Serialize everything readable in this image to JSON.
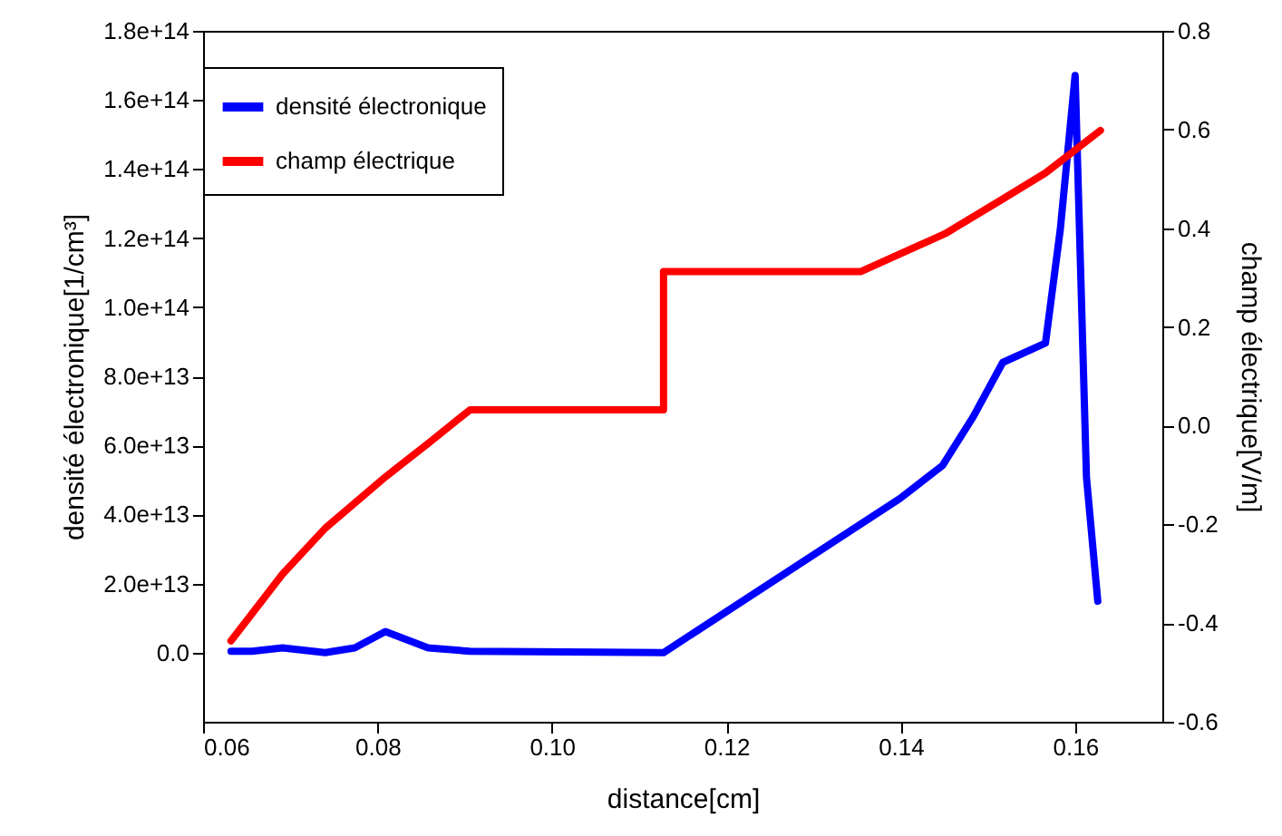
{
  "chart_data": {
    "type": "line",
    "xlabel": "distance[cm]",
    "ylabel": "densité électronique[1/cm³]",
    "y2label": "champ électrique[V/m]",
    "xlim": [
      0.06,
      0.17
    ],
    "xticks": [
      0.06,
      0.08,
      {
        "value": 0.1,
        "label": "0.10"
      },
      0.12,
      0.14,
      0.16
    ],
    "ylim": [
      -20000000000000.0,
      180000000000000.0
    ],
    "yticks": [
      {
        "value": 0,
        "label": "0.0"
      },
      {
        "value": 20000000000000.0,
        "label": "2.0e+13"
      },
      {
        "value": 40000000000000.0,
        "label": "4.0e+13"
      },
      {
        "value": 60000000000000.0,
        "label": "6.0e+13"
      },
      {
        "value": 80000000000000.0,
        "label": "8.0e+13"
      },
      {
        "value": 100000000000000.0,
        "label": "1.0e+14"
      },
      {
        "value": 120000000000000.0,
        "label": "1.2e+14"
      },
      {
        "value": 140000000000000.0,
        "label": "1.4e+14"
      },
      {
        "value": 160000000000000.0,
        "label": "1.6e+14"
      },
      {
        "value": 180000000000000.0,
        "label": "1.8e+14"
      }
    ],
    "y2lim": [
      -0.6,
      0.8
    ],
    "y2ticks": [
      -0.6,
      -0.4,
      -0.2,
      {
        "value": 0,
        "label": "0.0"
      },
      0.2,
      0.4,
      0.6,
      0.8
    ],
    "legend": "top left",
    "line_style": "solid",
    "series": [
      {
        "name": "densité électronique",
        "color": "#0000ff",
        "x": [
          0.0632,
          0.0656,
          0.0691,
          0.074,
          0.0774,
          0.0809,
          0.0858,
          0.0906,
          0.1128,
          0.1399,
          0.1448,
          0.1483,
          0.1517,
          0.1566,
          0.1583,
          0.16,
          0.1613,
          0.1626
        ],
        "values": [
          400000000000.0,
          400000000000.0,
          1400000000000.0,
          0,
          1400000000000.0,
          6100000000000.0,
          1400000000000.0,
          400000000000.0,
          0,
          44600000000000.0,
          54200000000000.0,
          68200000000000.0,
          84000000000000.0,
          89600000000000.0,
          122500000000000.0,
          167100000000000.0,
          50800000000000.0,
          14900000000000.0
        ]
      },
      {
        "name": "champ électrique",
        "color": "#ff0000",
        "axis": "y2",
        "x": [
          0.0632,
          0.0691,
          0.074,
          0.0809,
          0.0858,
          0.0906,
          0.1128,
          0.1128,
          0.1354,
          0.1451,
          0.1514,
          0.1566,
          0.1629
        ],
        "values": [
          -0.436,
          -0.301,
          -0.208,
          -0.104,
          -0.036,
          0.032,
          0.032,
          0.312,
          0.312,
          0.389,
          0.456,
          0.512,
          0.598
        ]
      }
    ]
  }
}
